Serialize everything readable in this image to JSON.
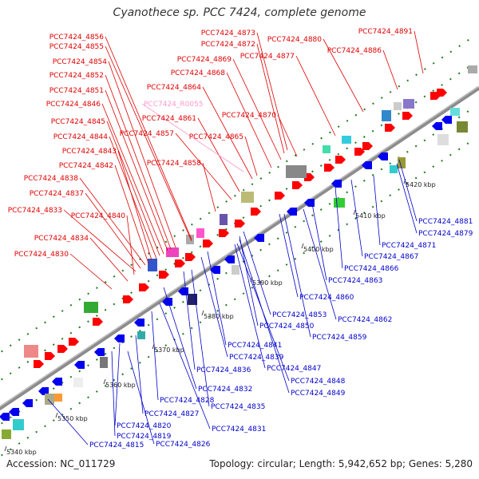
{
  "title": "Cyanothece sp. PCC 7424, complete genome",
  "footer": {
    "accession": "Accession: NC_011729",
    "summary": "Topology: circular; Length: 5,942,652 bp; Genes: 5,280"
  },
  "colors": {
    "backbone": "#8c8c8c",
    "forward_label": "#e00000",
    "reverse_label": "#0000cc",
    "rna_label": "#ff99cc",
    "tick": "#1e7a1e",
    "forward_feature": "#ff0000",
    "reverse_feature": "#0000ee"
  },
  "scale": {
    "unit": "kbp",
    "ticks": [
      "5340 kbp",
      "5350 kbp",
      "5360 kbp",
      "5370 kbp",
      "5380 kbp",
      "5390 kbp",
      "5400 kbp",
      "5410 kbp",
      "5420 kbp"
    ]
  },
  "labels_forward": [
    "PCC7424_4856",
    "PCC7424_4855",
    "PCC7424_4854",
    "PCC7424_4852",
    "PCC7424_4851",
    "PCC7424_4846",
    "PCC7424_4845",
    "PCC7424_4844",
    "PCC7424_4843",
    "PCC7424_4842",
    "PCC7424_4838",
    "PCC7424_4837",
    "PCC7424_4833",
    "PCC7424_4840",
    "PCC7424_4834",
    "PCC7424_4830",
    "PCC7424_4873",
    "PCC7424_4872",
    "PCC7424_4880",
    "PCC7424_4891",
    "PCC7424_4869",
    "PCC7424_4877",
    "PCC7424_4886",
    "PCC7424_4868",
    "PCC7424_4864",
    "PCC7424_4861",
    "PCC7424_4870",
    "PCC7424_4857",
    "PCC7424_4865",
    "PCC7424_4858"
  ],
  "labels_rna": [
    "PCC7424_R0055"
  ],
  "labels_reverse": [
    "PCC7424_4881",
    "PCC7424_4879",
    "PCC7424_4871",
    "PCC7424_4867",
    "PCC7424_4866",
    "PCC7424_4863",
    "PCC7424_4860",
    "PCC7424_4853",
    "PCC7424_4850",
    "PCC7424_4862",
    "PCC7424_4859",
    "PCC7424_4841",
    "PCC7424_4839",
    "PCC7424_4836",
    "PCC7424_4847",
    "PCC7424_4848",
    "PCC7424_4832",
    "PCC7424_4849",
    "PCC7424_4828",
    "PCC7424_4835",
    "PCC7424_4827",
    "PCC7424_4820",
    "PCC7424_4831",
    "PCC7424_4819",
    "PCC7424_4815",
    "PCC7424_4826"
  ]
}
